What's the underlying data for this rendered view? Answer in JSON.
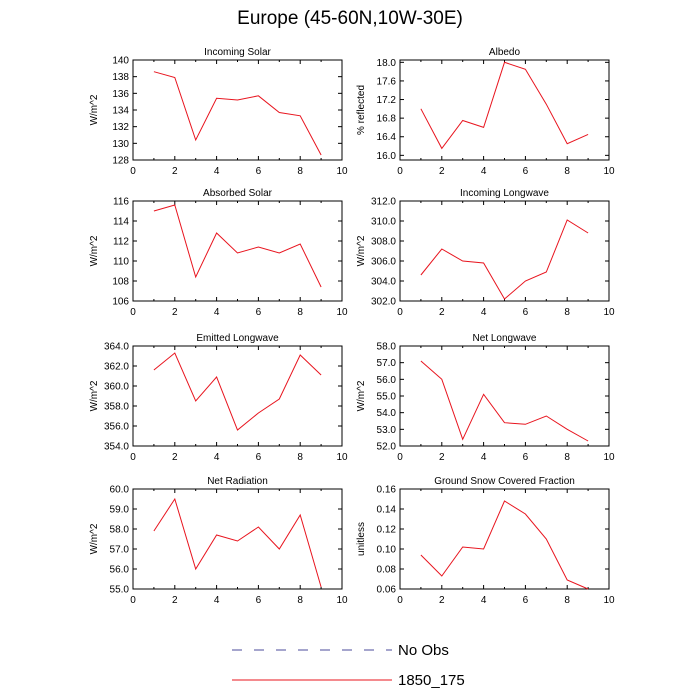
{
  "title": "Europe (45-60N,10W-30E)",
  "legend": [
    {
      "label": "No Obs",
      "color": "#4b4b9b",
      "dash": true
    },
    {
      "label": "1850_175",
      "color": "#e8141e",
      "dash": false
    }
  ],
  "chart_data": [
    {
      "type": "line",
      "title": "Incoming Solar",
      "ylabel": "W/m^2",
      "xlim": [
        0,
        10
      ],
      "ylim": [
        128,
        140
      ],
      "xticks": [
        "0",
        "2",
        "4",
        "6",
        "8",
        "10"
      ],
      "yticks": [
        "128",
        "130",
        "132",
        "134",
        "136",
        "138",
        "140"
      ],
      "series": [
        {
          "name": "1850_175",
          "x": [
            1,
            2,
            3,
            4,
            5,
            6,
            7,
            8,
            9
          ],
          "values": [
            138.6,
            137.9,
            130.4,
            135.4,
            135.2,
            135.7,
            133.7,
            133.3,
            128.6
          ]
        }
      ]
    },
    {
      "type": "line",
      "title": "Albedo",
      "ylabel": "% reflected",
      "xlim": [
        0,
        10
      ],
      "ylim": [
        15.9,
        18.05
      ],
      "xticks": [
        "0",
        "2",
        "4",
        "6",
        "8",
        "10"
      ],
      "yticks": [
        "16.0",
        "16.4",
        "16.8",
        "17.2",
        "17.6",
        "18.0"
      ],
      "series": [
        {
          "name": "1850_175",
          "x": [
            1,
            2,
            3,
            4,
            5,
            6,
            7,
            8,
            9
          ],
          "values": [
            17.0,
            16.15,
            16.75,
            16.6,
            18.0,
            17.85,
            17.1,
            16.25,
            16.45
          ]
        }
      ]
    },
    {
      "type": "line",
      "title": "Absorbed Solar",
      "ylabel": "W/m^2",
      "xlim": [
        0,
        10
      ],
      "ylim": [
        106,
        116
      ],
      "xticks": [
        "0",
        "2",
        "4",
        "6",
        "8",
        "10"
      ],
      "yticks": [
        "106",
        "108",
        "110",
        "112",
        "114",
        "116"
      ],
      "series": [
        {
          "name": "1850_175",
          "x": [
            1,
            2,
            3,
            4,
            5,
            6,
            7,
            8,
            9
          ],
          "values": [
            115.0,
            115.6,
            108.4,
            112.8,
            110.8,
            111.4,
            110.8,
            111.7,
            107.4
          ]
        }
      ]
    },
    {
      "type": "line",
      "title": "Incoming Longwave",
      "ylabel": "W/m^2",
      "xlim": [
        0,
        10
      ],
      "ylim": [
        302,
        312
      ],
      "xticks": [
        "0",
        "2",
        "4",
        "6",
        "8",
        "10"
      ],
      "yticks": [
        "302.0",
        "304.0",
        "306.0",
        "308.0",
        "310.0",
        "312.0"
      ],
      "series": [
        {
          "name": "1850_175",
          "x": [
            1,
            2,
            3,
            4,
            5,
            6,
            7,
            8,
            9
          ],
          "values": [
            304.6,
            307.2,
            306.0,
            305.8,
            302.2,
            304.0,
            304.9,
            310.1,
            308.8
          ]
        }
      ]
    },
    {
      "type": "line",
      "title": "Emitted Longwave",
      "ylabel": "W/m^2",
      "xlim": [
        0,
        10
      ],
      "ylim": [
        354,
        364
      ],
      "xticks": [
        "0",
        "2",
        "4",
        "6",
        "8",
        "10"
      ],
      "yticks": [
        "354.0",
        "356.0",
        "358.0",
        "360.0",
        "362.0",
        "364.0"
      ],
      "series": [
        {
          "name": "1850_175",
          "x": [
            1,
            2,
            3,
            4,
            5,
            6,
            7,
            8,
            9
          ],
          "values": [
            361.6,
            363.3,
            358.5,
            360.9,
            355.6,
            357.3,
            358.7,
            363.1,
            361.1
          ]
        }
      ]
    },
    {
      "type": "line",
      "title": "Net Longwave",
      "ylabel": "W/m^2",
      "xlim": [
        0,
        10
      ],
      "ylim": [
        52,
        58
      ],
      "xticks": [
        "0",
        "2",
        "4",
        "6",
        "8",
        "10"
      ],
      "yticks": [
        "52.0",
        "53.0",
        "54.0",
        "55.0",
        "56.0",
        "57.0",
        "58.0"
      ],
      "series": [
        {
          "name": "1850_175",
          "x": [
            1,
            2,
            3,
            4,
            5,
            6,
            7,
            8,
            9
          ],
          "values": [
            57.1,
            56.0,
            52.4,
            55.1,
            53.4,
            53.3,
            53.8,
            53.0,
            52.3
          ]
        }
      ]
    },
    {
      "type": "line",
      "title": "Net Radiation",
      "ylabel": "W/m^2",
      "xlim": [
        0,
        10
      ],
      "ylim": [
        55,
        60
      ],
      "xticks": [
        "0",
        "2",
        "4",
        "6",
        "8",
        "10"
      ],
      "yticks": [
        "55.0",
        "56.0",
        "57.0",
        "58.0",
        "59.0",
        "60.0"
      ],
      "series": [
        {
          "name": "1850_175",
          "x": [
            1,
            2,
            3,
            4,
            5,
            6,
            7,
            8,
            9
          ],
          "values": [
            57.9,
            59.5,
            56.0,
            57.7,
            57.4,
            58.1,
            57.0,
            58.7,
            55.1
          ]
        }
      ]
    },
    {
      "type": "line",
      "title": "Ground Snow Covered Fraction",
      "ylabel": "unitless",
      "xlim": [
        0,
        10
      ],
      "ylim": [
        0.06,
        0.16
      ],
      "xticks": [
        "0",
        "2",
        "4",
        "6",
        "8",
        "10"
      ],
      "yticks": [
        "0.06",
        "0.08",
        "0.10",
        "0.12",
        "0.14",
        "0.16"
      ],
      "series": [
        {
          "name": "1850_175",
          "x": [
            1,
            2,
            3,
            4,
            5,
            6,
            7,
            8,
            9
          ],
          "values": [
            0.094,
            0.073,
            0.102,
            0.1,
            0.148,
            0.135,
            0.11,
            0.069,
            0.06
          ]
        }
      ]
    }
  ]
}
